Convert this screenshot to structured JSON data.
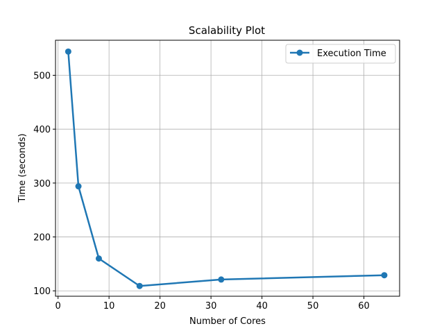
{
  "chart_data": {
    "type": "line",
    "title": "Scalability Plot",
    "xlabel": "Number of Cores",
    "ylabel": "Time (seconds)",
    "xlim": [
      -0.5,
      67
    ],
    "ylim": [
      90,
      565
    ],
    "xticks": [
      0,
      10,
      20,
      30,
      40,
      50,
      60
    ],
    "yticks": [
      100,
      200,
      300,
      400,
      500
    ],
    "grid": true,
    "legend_position": "top-right",
    "series": [
      {
        "name": "Execution Time",
        "color": "#1f77b4",
        "marker": "circle",
        "x": [
          2,
          4,
          8,
          16,
          32,
          64
        ],
        "y": [
          544,
          294,
          160,
          109,
          121,
          129
        ]
      }
    ]
  }
}
